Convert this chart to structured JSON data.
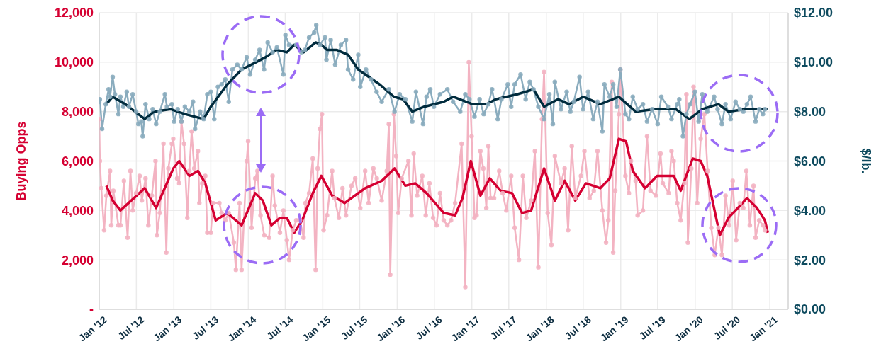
{
  "chart_data": {
    "type": "line",
    "ylabel": "Buying Opps",
    "y2label": "$/lb.",
    "xlim": [
      "2012-01-01",
      "2021-04-01"
    ],
    "xticks": [
      {
        "value": "2012-01-01",
        "label": "Jan '12"
      },
      {
        "value": "2012-07-01",
        "label": "Jul '12"
      },
      {
        "value": "2013-01-01",
        "label": "Jan '13"
      },
      {
        "value": "2013-07-01",
        "label": "Jul '13"
      },
      {
        "value": "2014-01-01",
        "label": "Jan '14"
      },
      {
        "value": "2014-07-01",
        "label": "Jul '14"
      },
      {
        "value": "2015-01-01",
        "label": "Jan '15"
      },
      {
        "value": "2015-07-01",
        "label": "Jul '15"
      },
      {
        "value": "2016-01-01",
        "label": "Jan '16"
      },
      {
        "value": "2016-07-01",
        "label": "Jul '16"
      },
      {
        "value": "2017-01-01",
        "label": "Jan '17"
      },
      {
        "value": "2017-07-01",
        "label": "Jul '17"
      },
      {
        "value": "2018-01-01",
        "label": "Jan '18"
      },
      {
        "value": "2018-07-01",
        "label": "Jul '18"
      },
      {
        "value": "2019-01-01",
        "label": "Jan '19"
      },
      {
        "value": "2019-07-01",
        "label": "Jul '19"
      },
      {
        "value": "2020-01-01",
        "label": "Jan '20"
      },
      {
        "value": "2020-07-01",
        "label": "Jul '20"
      },
      {
        "value": "2021-01-01",
        "label": "Jan '21"
      }
    ],
    "ylim": [
      0,
      12000
    ],
    "yticks": [
      {
        "value": 0,
        "label": "-"
      },
      {
        "value": 2000,
        "label": "2,000"
      },
      {
        "value": 4000,
        "label": "4,000"
      },
      {
        "value": 6000,
        "label": "6,000"
      },
      {
        "value": 8000,
        "label": "8,000"
      },
      {
        "value": 10000,
        "label": "10,000"
      },
      {
        "value": 12000,
        "label": "12,000"
      }
    ],
    "y2lim": [
      0,
      12
    ],
    "y2ticks": [
      {
        "value": 0,
        "label": "$0.00"
      },
      {
        "value": 2,
        "label": "$2.00"
      },
      {
        "value": 4,
        "label": "$4.00"
      },
      {
        "value": 6,
        "label": "$6.00"
      },
      {
        "value": 8,
        "label": "$8.00"
      },
      {
        "value": 10,
        "label": "$10.00"
      },
      {
        "value": 12,
        "label": "$12.00"
      }
    ],
    "grid": true,
    "series": [
      {
        "color": "#f3b3c2",
        "marker": "circle",
        "x": [
          "2012-01-01",
          "2012-01-04",
          "2012-01-11",
          "2012-01-25",
          "2012-02-05",
          "2012-02-23",
          "2012-02-29",
          "2012-03-10",
          "2012-04-04",
          "2012-04-14",
          "2012-05-01",
          "2012-05-19",
          "2012-06-02",
          "2012-06-13",
          "2012-06-30",
          "2012-07-17",
          "2012-07-28",
          "2012-08-15",
          "2012-08-29",
          "2012-09-15",
          "2012-10-03",
          "2012-10-10",
          "2012-10-24",
          "2012-11-11",
          "2012-11-25",
          "2012-12-05",
          "2012-12-22",
          "2012-12-29",
          "2013-01-17",
          "2013-01-27",
          "2013-02-07",
          "2013-02-20",
          "2013-03-08",
          "2013-03-18",
          "2013-03-29",
          "2013-04-11",
          "2013-04-29",
          "2013-05-06",
          "2013-05-20",
          "2013-06-04",
          "2013-06-14",
          "2013-07-01",
          "2013-07-12",
          "2013-08-12",
          "2013-08-23",
          "2013-09-10",
          "2013-09-27",
          "2013-10-22",
          "2013-11-01",
          "2013-11-19",
          "2013-11-29",
          "2013-12-24",
          "2013-12-31",
          "2014-01-17",
          "2014-02-04",
          "2014-02-15",
          "2014-03-02",
          "2014-03-20",
          "2014-04-13",
          "2014-04-30",
          "2014-05-11",
          "2014-06-05",
          "2014-06-22",
          "2014-07-09",
          "2014-07-20",
          "2014-08-07",
          "2014-08-24",
          "2014-09-11",
          "2014-09-29",
          "2014-10-08",
          "2014-10-26",
          "2014-11-13",
          "2014-11-27",
          "2014-12-07",
          "2014-12-18",
          "2014-12-28",
          "2015-01-05",
          "2015-01-22",
          "2015-02-16",
          "2015-02-27",
          "2015-03-21",
          "2015-04-08",
          "2015-04-25",
          "2015-05-22",
          "2015-06-09",
          "2015-07-04",
          "2015-07-28",
          "2015-08-14",
          "2015-09-06",
          "2015-09-23",
          "2015-10-17",
          "2015-11-11",
          "2015-11-21",
          "2015-11-28",
          "2015-12-16",
          "2015-12-27",
          "2016-01-06",
          "2016-01-23",
          "2016-02-25",
          "2016-03-11",
          "2016-03-22",
          "2016-04-08",
          "2016-05-03",
          "2016-05-20",
          "2016-06-07",
          "2016-06-25",
          "2016-07-12",
          "2016-07-29",
          "2016-08-16",
          "2016-09-03",
          "2016-09-21",
          "2016-10-11",
          "2016-11-12",
          "2016-11-30",
          "2016-12-17",
          "2016-12-31",
          "2017-01-14",
          "2017-01-24",
          "2017-02-12",
          "2017-02-26",
          "2017-03-13",
          "2017-03-23",
          "2017-04-03",
          "2017-04-20",
          "2017-05-15",
          "2017-06-01",
          "2017-06-19",
          "2017-07-13",
          "2017-07-30",
          "2017-08-20",
          "2017-09-08",
          "2017-09-25",
          "2017-10-19",
          "2017-11-06",
          "2017-11-23",
          "2017-12-11",
          "2017-12-21",
          "2018-01-08",
          "2018-01-26",
          "2018-02-12",
          "2018-03-14",
          "2018-04-01",
          "2018-04-18",
          "2018-05-06",
          "2018-05-23",
          "2018-06-20",
          "2018-07-07",
          "2018-08-01",
          "2018-08-22",
          "2018-09-09",
          "2018-10-03",
          "2018-10-21",
          "2018-11-01",
          "2018-11-18",
          "2018-11-25",
          "2018-12-05",
          "2018-12-23",
          "2018-12-30",
          "2019-01-24",
          "2019-02-10",
          "2019-02-20",
          "2019-03-15",
          "2019-03-25",
          "2019-04-20",
          "2019-05-10",
          "2019-05-27",
          "2019-06-22",
          "2019-07-15",
          "2019-07-26",
          "2019-08-24",
          "2019-09-07",
          "2019-09-18",
          "2019-10-05",
          "2019-10-22",
          "2019-11-09",
          "2019-11-19",
          "2019-11-26",
          "2019-12-13",
          "2019-12-24",
          "2020-01-11",
          "2020-01-28",
          "2020-02-15",
          "2020-03-02",
          "2020-03-20",
          "2020-04-06",
          "2020-04-24",
          "2020-05-11",
          "2020-05-29",
          "2020-06-16",
          "2020-07-03",
          "2020-07-20",
          "2020-08-07",
          "2020-08-24",
          "2020-09-08",
          "2020-09-25",
          "2020-10-13",
          "2020-10-23",
          "2020-11-10",
          "2020-11-28",
          "2020-12-08"
        ],
        "values": [
          7700,
          6000,
          4900,
          3200,
          4600,
          5600,
          3400,
          4800,
          3400,
          3400,
          5200,
          2900,
          5600,
          4000,
          4700,
          5400,
          4400,
          5300,
          3400,
          4600,
          6000,
          3000,
          3900,
          6700,
          2300,
          5700,
          6700,
          6900,
          5300,
          5100,
          7600,
          6700,
          3700,
          5600,
          7200,
          5700,
          6400,
          4300,
          5100,
          5400,
          3100,
          3100,
          4300,
          4300,
          3900,
          3600,
          3900,
          2700,
          1600,
          4300,
          1600,
          6000,
          6800,
          3300,
          5300,
          5600,
          3800,
          3000,
          2900,
          5400,
          4200,
          3100,
          4000,
          2800,
          2000,
          3200,
          3600,
          3600,
          2900,
          4300,
          4700,
          6100,
          1600,
          5700,
          7300,
          7900,
          3200,
          3800,
          5600,
          4500,
          3700,
          4900,
          3800,
          5000,
          5300,
          4100,
          5600,
          4300,
          5700,
          5300,
          4400,
          5600,
          7500,
          1400,
          7900,
          6200,
          3900,
          5300,
          6000,
          3800,
          6300,
          4600,
          5400,
          3800,
          5100,
          3700,
          3400,
          4700,
          3600,
          3400,
          3600,
          4300,
          6700,
          900,
          10000,
          7000,
          3700,
          3800,
          6400,
          5700,
          4100,
          6600,
          4500,
          4500,
          5600,
          4700,
          4000,
          5400,
          3300,
          2000,
          5400,
          3700,
          4400,
          6400,
          1700,
          7700,
          9600,
          3900,
          2600,
          6200,
          5100,
          5700,
          3200,
          6600,
          4500,
          5400,
          6400,
          4500,
          4800,
          6400,
          4000,
          2700,
          3600,
          9200,
          2300,
          4800,
          7900,
          9700,
          5400,
          4700,
          6000,
          5200,
          3800,
          4000,
          7000,
          4800,
          4600,
          6300,
          5100,
          4700,
          6400,
          6000,
          4300,
          3600,
          5100,
          8700,
          2700,
          5700,
          9000,
          4300,
          6900,
          7900,
          5600,
          3300,
          2200,
          3300,
          2200,
          4600,
          3400,
          5200,
          2800,
          4300,
          4100,
          5600,
          3400,
          5000,
          2900,
          3600,
          3400,
          3200
        ]
      },
      {
        "color": "#8aacbe",
        "marker": "circle",
        "axis": "y2",
        "x": [
          "2012-01-01",
          "2012-01-04",
          "2012-01-15",
          "2012-02-02",
          "2012-02-16",
          "2012-02-23",
          "2012-03-07",
          "2012-03-18",
          "2012-04-04",
          "2012-04-14",
          "2012-04-28",
          "2012-05-15",
          "2012-05-26",
          "2012-06-13",
          "2012-06-30",
          "2012-07-11",
          "2012-07-25",
          "2012-08-01",
          "2012-08-15",
          "2012-09-02",
          "2012-09-19",
          "2012-10-06",
          "2012-10-24",
          "2012-11-18",
          "2012-11-28",
          "2012-12-22",
          "2013-01-02",
          "2013-01-20",
          "2013-02-07",
          "2013-02-24",
          "2013-03-18",
          "2013-04-05",
          "2013-04-15",
          "2013-05-10",
          "2013-05-27",
          "2013-06-14",
          "2013-07-01",
          "2013-07-18",
          "2013-08-05",
          "2013-08-23",
          "2013-09-10",
          "2013-09-27",
          "2013-10-15",
          "2013-11-08",
          "2013-11-29",
          "2013-12-24",
          "2014-01-10",
          "2014-02-04",
          "2014-02-25",
          "2014-03-19",
          "2014-04-06",
          "2014-04-30",
          "2014-05-21",
          "2014-06-22",
          "2014-07-02",
          "2014-07-20",
          "2014-08-24",
          "2014-09-18",
          "2014-10-05",
          "2014-10-26",
          "2014-11-20",
          "2014-11-30",
          "2014-12-18",
          "2015-01-12",
          "2015-01-19",
          "2015-02-09",
          "2015-03-03",
          "2015-03-31",
          "2015-04-25",
          "2015-05-05",
          "2015-05-30",
          "2015-06-24",
          "2015-07-04",
          "2015-08-01",
          "2015-08-25",
          "2015-09-22",
          "2015-10-17",
          "2015-11-21",
          "2015-12-19",
          "2016-01-13",
          "2016-02-10",
          "2016-03-15",
          "2016-04-02",
          "2016-05-07",
          "2016-05-24",
          "2016-06-11",
          "2016-06-29",
          "2016-07-29",
          "2016-09-03",
          "2016-10-01",
          "2016-11-05",
          "2016-11-30",
          "2016-12-20",
          "2017-01-14",
          "2017-02-08",
          "2017-02-28",
          "2017-03-23",
          "2017-04-10",
          "2017-05-08",
          "2017-05-26",
          "2017-06-26",
          "2017-07-13",
          "2017-07-30",
          "2017-08-28",
          "2017-09-22",
          "2017-10-12",
          "2017-10-30",
          "2017-11-23",
          "2017-12-21",
          "2018-01-16",
          "2018-02-02",
          "2018-02-12",
          "2018-03-14",
          "2018-04-11",
          "2018-04-29",
          "2018-05-16",
          "2018-06-13",
          "2018-06-30",
          "2018-07-25",
          "2018-08-19",
          "2018-09-09",
          "2018-10-03",
          "2018-10-13",
          "2018-11-08",
          "2018-11-25",
          "2018-12-12",
          "2018-12-30",
          "2019-01-24",
          "2019-02-10",
          "2019-03-01",
          "2019-03-25",
          "2019-04-20",
          "2019-05-10",
          "2019-06-04",
          "2019-07-01",
          "2019-07-19",
          "2019-08-20",
          "2019-09-07",
          "2019-10-05",
          "2019-10-15",
          "2019-11-02",
          "2019-11-19",
          "2019-12-07",
          "2019-12-31",
          "2020-01-18",
          "2020-02-05",
          "2020-02-29",
          "2020-04-03",
          "2020-04-20",
          "2020-05-11",
          "2020-05-29",
          "2020-06-23",
          "2020-07-17",
          "2020-08-07",
          "2020-08-24",
          "2020-09-11",
          "2020-09-29",
          "2020-10-23",
          "2020-11-10",
          "2020-11-28",
          "2020-12-08"
        ],
        "values": [
          8.4,
          8.5,
          7.3,
          8.3,
          8.9,
          8.6,
          9.4,
          8.7,
          7.9,
          8.6,
          8.2,
          8.8,
          8.2,
          8.7,
          8.0,
          7.5,
          7.6,
          7.0,
          8.3,
          7.7,
          8.1,
          7.5,
          8.0,
          8.7,
          8.2,
          8.3,
          7.6,
          8.1,
          7.6,
          8.2,
          8.0,
          8.4,
          7.3,
          8.0,
          7.7,
          8.7,
          8.8,
          7.7,
          9.0,
          9.1,
          9.3,
          8.4,
          9.7,
          9.9,
          9.7,
          10.2,
          9.5,
          10.1,
          10.5,
          9.7,
          10.8,
          10.4,
          10.6,
          9.5,
          11.1,
          10.7,
          10.7,
          10.4,
          10.5,
          11.0,
          11.2,
          11.5,
          10.7,
          11.0,
          10.1,
          10.9,
          9.9,
          10.7,
          10.9,
          9.7,
          9.3,
          10.3,
          9.0,
          9.7,
          9.3,
          8.8,
          8.4,
          8.9,
          8.0,
          8.7,
          8.5,
          7.6,
          8.8,
          7.5,
          8.6,
          8.9,
          8.2,
          8.7,
          8.9,
          8.4,
          8.0,
          8.7,
          8.5,
          7.8,
          8.5,
          7.9,
          8.3,
          8.9,
          7.7,
          8.5,
          9.1,
          8.2,
          9.1,
          9.5,
          8.5,
          9.2,
          8.9,
          8.2,
          7.7,
          8.7,
          7.5,
          9.2,
          8.1,
          8.8,
          8.0,
          8.4,
          9.4,
          8.1,
          8.8,
          7.7,
          8.4,
          7.2,
          9.1,
          8.6,
          9.1,
          8.2,
          9.7,
          7.9,
          7.7,
          8.6,
          8.1,
          8.3,
          7.6,
          8.1,
          7.5,
          8.6,
          8.2,
          7.7,
          8.3,
          8.5,
          7.0,
          7.9,
          8.3,
          8.8,
          7.6,
          8.7,
          8.0,
          8.6,
          8.1,
          7.5,
          8.3,
          7.7,
          8.4,
          8.1,
          8.0,
          8.3,
          8.6,
          7.6,
          8.1,
          7.9,
          8.1
        ]
      },
      {
        "color": "#d50032",
        "marker": "none",
        "x": [
          "2012-02-05",
          "2012-03-07",
          "2012-04-14",
          "2012-08-11",
          "2012-10-06",
          "2012-12-29",
          "2013-01-27",
          "2013-03-18",
          "2013-04-29",
          "2013-06-04",
          "2013-07-25",
          "2013-09-20",
          "2013-11-29",
          "2014-02-04",
          "2014-03-13",
          "2014-04-24",
          "2014-06-05",
          "2014-07-09",
          "2014-08-14",
          "2014-09-22",
          "2014-11-13",
          "2014-12-25",
          "2015-02-16",
          "2015-04-18",
          "2015-06-24",
          "2015-07-28",
          "2015-10-17",
          "2015-12-19",
          "2016-02-10",
          "2016-03-29",
          "2016-05-24",
          "2016-08-16",
          "2016-10-11",
          "2016-11-16",
          "2016-12-27",
          "2017-02-12",
          "2017-03-30",
          "2017-05-22",
          "2017-07-17",
          "2017-09-04",
          "2017-10-19",
          "2017-12-21",
          "2018-02-12",
          "2018-04-01",
          "2018-05-23",
          "2018-07-14",
          "2018-09-23",
          "2018-11-08",
          "2018-12-23",
          "2019-01-27",
          "2019-03-01",
          "2019-04-30",
          "2019-06-28",
          "2019-09-18",
          "2019-10-22",
          "2019-12-20",
          "2020-01-28",
          "2020-02-29",
          "2020-05-01",
          "2020-06-12",
          "2020-07-17",
          "2020-09-11",
          "2020-10-30",
          "2020-12-08",
          "2020-12-22"
        ],
        "values": [
          5000,
          4400,
          4000,
          4900,
          4100,
          5700,
          6000,
          5400,
          5600,
          5100,
          3600,
          3900,
          3400,
          4700,
          4400,
          3400,
          3700,
          3700,
          3100,
          3600,
          4700,
          5400,
          4600,
          4300,
          4700,
          4900,
          5200,
          5700,
          5000,
          5100,
          4700,
          3900,
          3800,
          4500,
          6000,
          4600,
          5300,
          4800,
          4700,
          3900,
          4000,
          5700,
          4400,
          5200,
          4400,
          5100,
          4900,
          5300,
          6900,
          6800,
          5600,
          4900,
          5400,
          5400,
          4800,
          6100,
          6000,
          5400,
          3000,
          3700,
          4000,
          4500,
          4100,
          3600,
          3100
        ]
      },
      {
        "color": "#002b3d",
        "marker": "none",
        "axis": "y2",
        "x": [
          "2012-02-05",
          "2012-03-07",
          "2012-05-08",
          "2012-08-11",
          "2012-09-26",
          "2012-12-15",
          "2013-02-24",
          "2013-05-27",
          "2013-07-01",
          "2013-09-20",
          "2013-11-29",
          "2014-02-08",
          "2014-03-26",
          "2014-05-21",
          "2014-07-09",
          "2014-08-14",
          "2014-09-29",
          "2014-11-27",
          "2014-12-25",
          "2015-01-22",
          "2015-03-10",
          "2015-05-05",
          "2015-06-24",
          "2015-10-07",
          "2015-12-16",
          "2016-01-30",
          "2016-03-15",
          "2016-05-13",
          "2016-08-16",
          "2016-10-01",
          "2017-01-04",
          "2017-03-13",
          "2017-04-28",
          "2017-08-11",
          "2017-10-30",
          "2017-12-21",
          "2018-02-27",
          "2018-04-22",
          "2018-07-01",
          "2018-09-23",
          "2018-12-23",
          "2019-03-15",
          "2019-06-14",
          "2019-09-28",
          "2019-12-03",
          "2020-02-05",
          "2020-04-24",
          "2020-06-12",
          "2020-09-01",
          "2020-12-22"
        ],
        "values": [
          8.3,
          8.6,
          8.3,
          7.7,
          8.0,
          8.1,
          7.9,
          7.7,
          8.2,
          9.1,
          9.7,
          10.0,
          10.2,
          10.5,
          10.4,
          10.7,
          10.4,
          10.8,
          10.7,
          10.5,
          10.5,
          10.3,
          9.7,
          9.1,
          8.6,
          8.5,
          8.0,
          8.2,
          8.4,
          8.6,
          8.3,
          8.3,
          8.5,
          8.7,
          8.9,
          8.2,
          8.5,
          8.3,
          8.6,
          8.3,
          8.6,
          8.0,
          8.1,
          8.1,
          7.7,
          8.1,
          8.3,
          8.0,
          8.1,
          8.1
        ]
      }
    ]
  }
}
